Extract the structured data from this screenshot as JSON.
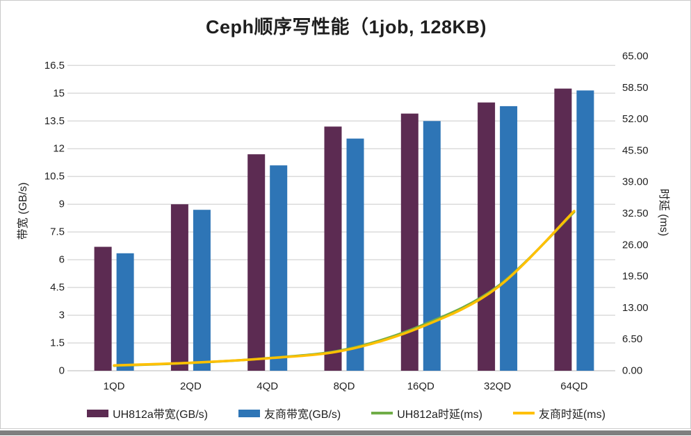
{
  "title": "Ceph顺序写性能（1job, 128KB)",
  "chart_data": {
    "type": "bar",
    "subtype": "combo-bar-line-dual-axis",
    "categories": [
      "1QD",
      "2QD",
      "4QD",
      "8QD",
      "16QD",
      "32QD",
      "64QD"
    ],
    "series": [
      {
        "id": "uh812a-bandwidth",
        "name": "UH812a带宽(GB/s)",
        "kind": "bar",
        "axis": "left",
        "color": "#5C2B52",
        "values": [
          6.7,
          9.0,
          11.7,
          13.2,
          13.9,
          14.5,
          15.25
        ]
      },
      {
        "id": "youshang-bandwidth",
        "name": "友商带宽(GB/s)",
        "kind": "bar",
        "axis": "left",
        "color": "#2E75B6",
        "values": [
          6.35,
          8.7,
          11.1,
          12.55,
          13.5,
          14.3,
          15.15
        ]
      },
      {
        "id": "uh812a-latency",
        "name": "UH812a时延(ms)",
        "kind": "line",
        "axis": "right",
        "color": "#70AD47",
        "values": [
          1.05,
          1.6,
          2.6,
          4.35,
          9.3,
          17.4,
          32.8
        ]
      },
      {
        "id": "youshang-latency",
        "name": "友商时延(ms)",
        "kind": "line",
        "axis": "right",
        "color": "#FFC000",
        "values": [
          1.1,
          1.65,
          2.55,
          4.2,
          9.0,
          17.2,
          33.0
        ]
      }
    ],
    "left_axis": {
      "title": "带宽 (GB/s)",
      "min": 0,
      "max": 17,
      "tick_labels": [
        "0",
        "1.5",
        "3",
        "4.5",
        "6",
        "7.5",
        "9",
        "10.5",
        "12",
        "13.5",
        "15",
        "16.5"
      ],
      "tick_step": 1.5
    },
    "right_axis": {
      "title": "时延 (ms)",
      "min": 0,
      "max": 65,
      "tick_labels": [
        "0.00",
        "6.50",
        "13.00",
        "19.50",
        "26.00",
        "32.50",
        "39.00",
        "45.50",
        "52.00",
        "58.50",
        "65.00"
      ],
      "tick_step": 6.5
    },
    "grid": true,
    "legend_position": "bottom"
  },
  "colors": {
    "gridline": "#DBDBDB",
    "axis_line": "#CFCFCF",
    "text": "#1F1F1F",
    "frame_border": "#C9C9C9",
    "bottom_strip": "#7F7F7F",
    "background": "#FFFFFF"
  }
}
